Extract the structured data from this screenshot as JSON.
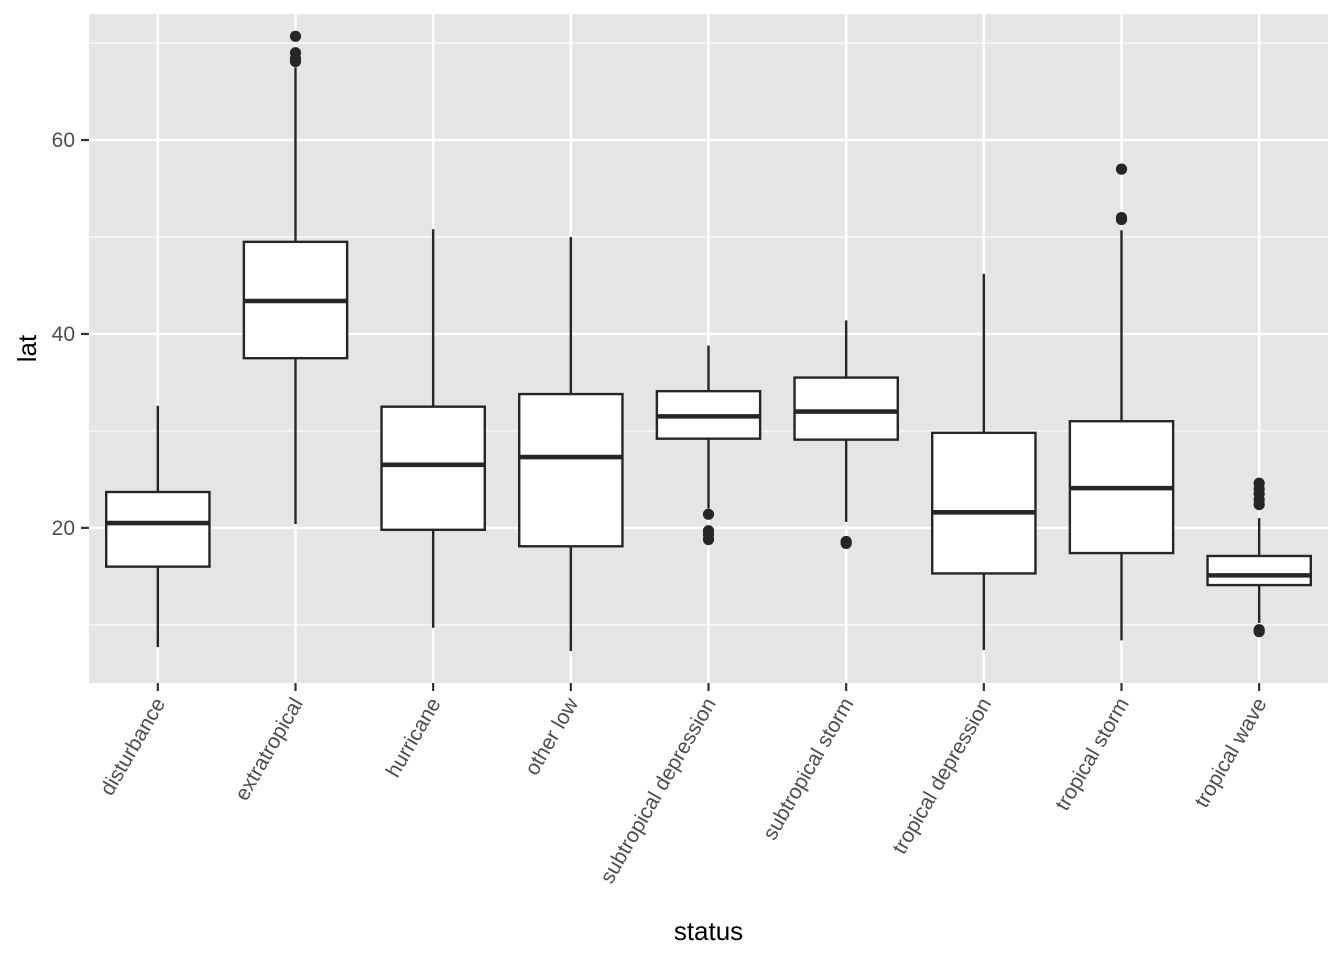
{
  "chart_data": {
    "type": "boxplot",
    "xlabel": "status",
    "ylabel": "lat",
    "ylim": [
      4,
      73
    ],
    "y_ticks": [
      20,
      40,
      60
    ],
    "y_minor_ticks": [
      10,
      30,
      50,
      70
    ],
    "grid": true,
    "colors": {
      "panel_background": "#e5e5e5",
      "grid": "#ffffff",
      "box_fill": "#ffffff",
      "box_stroke": "#262626",
      "tick_text": "#4d4d4d"
    },
    "categories": [
      "disturbance",
      "extratropical",
      "hurricane",
      "other low",
      "subtropical depression",
      "subtropical storm",
      "tropical depression",
      "tropical storm",
      "tropical wave"
    ],
    "boxes": [
      {
        "category": "disturbance",
        "whisker_low": 7.7,
        "q1": 16.0,
        "median": 20.5,
        "q3": 23.7,
        "whisker_high": 32.6,
        "outliers": []
      },
      {
        "category": "extratropical",
        "whisker_low": 20.4,
        "q1": 37.5,
        "median": 43.4,
        "q3": 49.5,
        "whisker_high": 67.5,
        "outliers": [
          68.1,
          68.4,
          69.0,
          70.7
        ]
      },
      {
        "category": "hurricane",
        "whisker_low": 9.7,
        "q1": 19.8,
        "median": 26.5,
        "q3": 32.5,
        "whisker_high": 50.8,
        "outliers": []
      },
      {
        "category": "other low",
        "whisker_low": 7.3,
        "q1": 18.1,
        "median": 27.3,
        "q3": 33.8,
        "whisker_high": 50.0,
        "outliers": []
      },
      {
        "category": "subtropical depression",
        "whisker_low": 22.0,
        "q1": 29.2,
        "median": 31.5,
        "q3": 34.1,
        "whisker_high": 38.8,
        "outliers": [
          18.8,
          19.3,
          19.7,
          21.4
        ]
      },
      {
        "category": "subtropical storm",
        "whisker_low": 20.6,
        "q1": 29.1,
        "median": 32.0,
        "q3": 35.5,
        "whisker_high": 41.4,
        "outliers": [
          18.4,
          18.6
        ]
      },
      {
        "category": "tropical depression",
        "whisker_low": 7.4,
        "q1": 15.3,
        "median": 21.6,
        "q3": 29.8,
        "whisker_high": 46.2,
        "outliers": []
      },
      {
        "category": "tropical storm",
        "whisker_low": 8.4,
        "q1": 17.4,
        "median": 24.1,
        "q3": 31.0,
        "whisker_high": 50.7,
        "outliers": [
          51.8,
          52.0,
          57.0
        ]
      },
      {
        "category": "tropical wave",
        "whisker_low": 10.2,
        "q1": 14.1,
        "median": 15.1,
        "q3": 17.1,
        "whisker_high": 21.0,
        "outliers": [
          9.3,
          9.5,
          22.4,
          22.9,
          23.5,
          24.0,
          24.6
        ]
      }
    ]
  }
}
